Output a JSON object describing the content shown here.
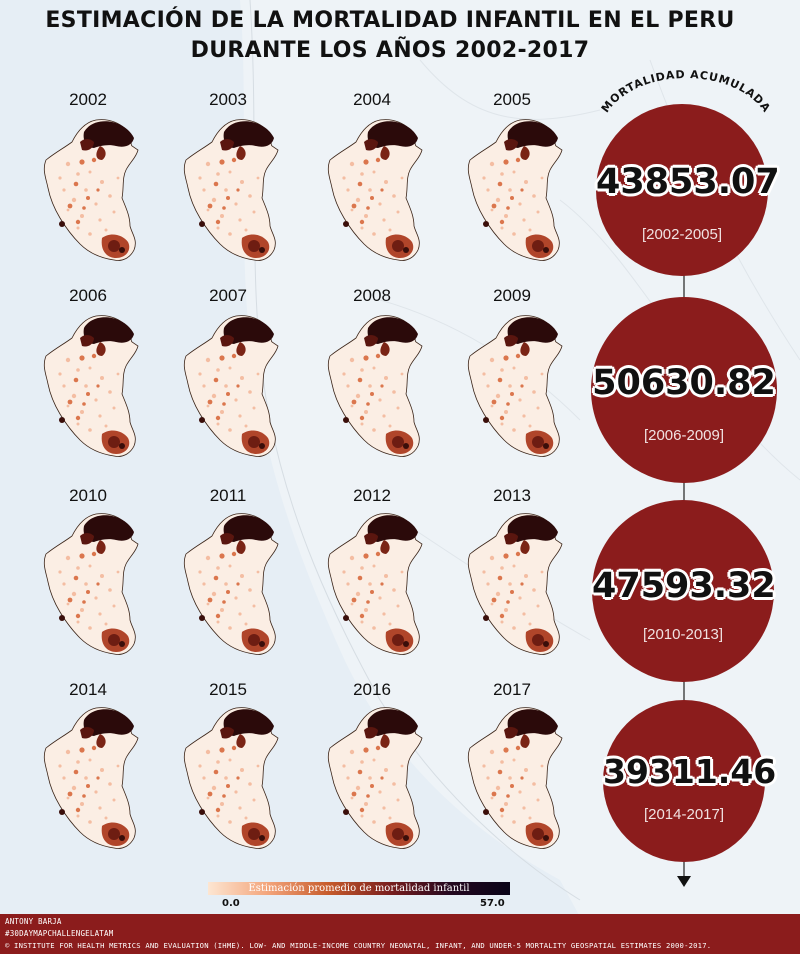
{
  "title": {
    "line1": "ESTIMACIÓN DE LA MORTALIDAD INFANTIL EN EL PERU",
    "line2": "DURANTE LOS AÑOS 2002-2017"
  },
  "maps": [
    {
      "year": "2002"
    },
    {
      "year": "2003"
    },
    {
      "year": "2004"
    },
    {
      "year": "2005"
    },
    {
      "year": "2006"
    },
    {
      "year": "2007"
    },
    {
      "year": "2008"
    },
    {
      "year": "2009"
    },
    {
      "year": "2010"
    },
    {
      "year": "2011"
    },
    {
      "year": "2012"
    },
    {
      "year": "2013"
    },
    {
      "year": "2014"
    },
    {
      "year": "2015"
    },
    {
      "year": "2016"
    },
    {
      "year": "2017"
    }
  ],
  "accumulated": {
    "label": "MORTALIDAD ACUMULADA",
    "periods": [
      {
        "value": "43853.07",
        "range": "[2002-2005]"
      },
      {
        "value": "50630.82",
        "range": "[2006-2009]"
      },
      {
        "value": "47593.32",
        "range": "[2010-2013]"
      },
      {
        "value": "39311.46",
        "range": "[2014-2017]"
      }
    ]
  },
  "legend": {
    "title": "Estimación promedio de mortalidad infantil",
    "min": "0.0",
    "max": "57.0",
    "colors": [
      "#fde6d2",
      "#f3a47a",
      "#c65b2b",
      "#7a1e1e",
      "#0a0418"
    ]
  },
  "footer": {
    "author": "ANTONY BARJA",
    "hashtag": "#30DAYMAPCHALLENGELATAM",
    "source": "© INSTITUTE FOR HEALTH METRICS AND EVALUATION (IHME). LOW- AND MIDDLE-INCOME COUNTRY NEONATAL, INFANT, AND UNDER-5 MORTALITY GEOSPATIAL ESTIMATES 2000-2017."
  },
  "colors": {
    "circle": "#8b1c1c",
    "footer": "#8b1c1c",
    "background": "#f2f5f8"
  }
}
